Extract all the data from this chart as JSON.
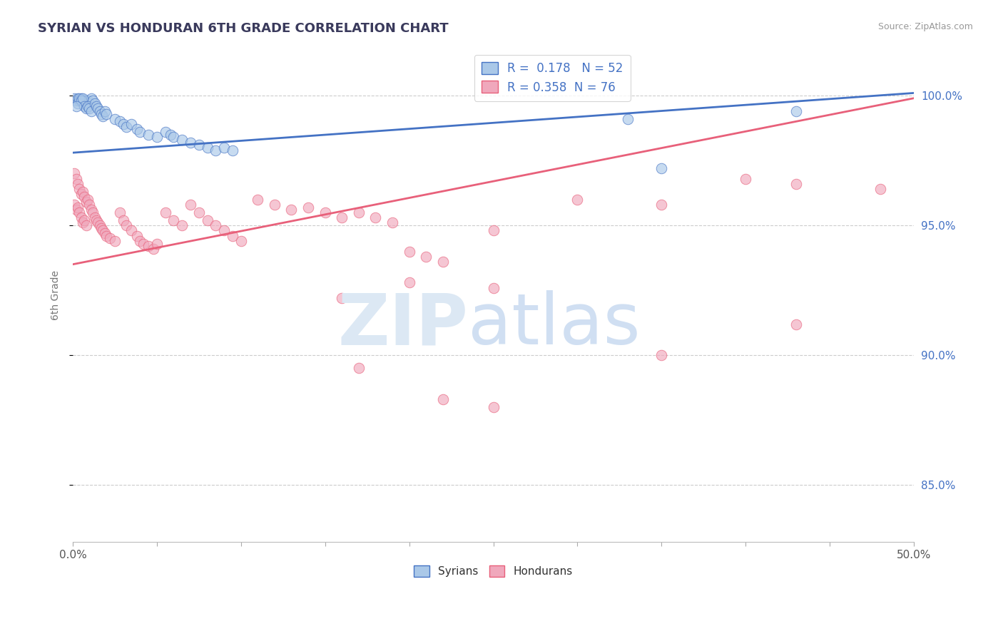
{
  "title": "SYRIAN VS HONDURAN 6TH GRADE CORRELATION CHART",
  "source": "Source: ZipAtlas.com",
  "ylabel": "6th Grade",
  "ytick_labels": [
    "85.0%",
    "90.0%",
    "95.0%",
    "100.0%"
  ],
  "ytick_values": [
    0.85,
    0.9,
    0.95,
    1.0
  ],
  "xmin": 0.0,
  "xmax": 0.5,
  "ymin": 0.828,
  "ymax": 1.018,
  "legend_r_syrian": "R =  0.178",
  "legend_n_syrian": "N = 52",
  "legend_r_honduran": "R = 0.358",
  "legend_n_honduran": "N = 76",
  "syrian_color": "#aac8e8",
  "honduran_color": "#f0a8bc",
  "syrian_line_color": "#4472c4",
  "honduran_line_color": "#e8607a",
  "watermark_color": "#dce8f4",
  "background_color": "#ffffff",
  "syrian_trend_x": [
    0.0,
    0.5
  ],
  "syrian_trend_y": [
    0.978,
    1.001
  ],
  "honduran_trend_x": [
    0.0,
    0.5
  ],
  "honduran_trend_y": [
    0.935,
    0.999
  ],
  "syrian_points": [
    [
      0.001,
      0.999
    ],
    [
      0.002,
      0.998
    ],
    [
      0.003,
      0.999
    ],
    [
      0.004,
      0.998
    ],
    [
      0.005,
      0.999
    ],
    [
      0.006,
      0.997
    ],
    [
      0.007,
      0.998
    ],
    [
      0.008,
      0.997
    ],
    [
      0.009,
      0.998
    ],
    [
      0.01,
      0.997
    ],
    [
      0.011,
      0.999
    ],
    [
      0.012,
      0.998
    ],
    [
      0.003,
      0.997
    ],
    [
      0.004,
      0.999
    ],
    [
      0.005,
      0.998
    ],
    [
      0.006,
      0.999
    ],
    [
      0.007,
      0.996
    ],
    [
      0.008,
      0.995
    ],
    [
      0.009,
      0.996
    ],
    [
      0.002,
      0.996
    ],
    [
      0.01,
      0.995
    ],
    [
      0.011,
      0.994
    ],
    [
      0.013,
      0.997
    ],
    [
      0.014,
      0.996
    ],
    [
      0.015,
      0.995
    ],
    [
      0.016,
      0.994
    ],
    [
      0.017,
      0.993
    ],
    [
      0.018,
      0.992
    ],
    [
      0.019,
      0.994
    ],
    [
      0.02,
      0.993
    ],
    [
      0.025,
      0.991
    ],
    [
      0.028,
      0.99
    ],
    [
      0.03,
      0.989
    ],
    [
      0.032,
      0.988
    ],
    [
      0.035,
      0.989
    ],
    [
      0.038,
      0.987
    ],
    [
      0.04,
      0.986
    ],
    [
      0.045,
      0.985
    ],
    [
      0.05,
      0.984
    ],
    [
      0.055,
      0.986
    ],
    [
      0.058,
      0.985
    ],
    [
      0.06,
      0.984
    ],
    [
      0.065,
      0.983
    ],
    [
      0.07,
      0.982
    ],
    [
      0.075,
      0.981
    ],
    [
      0.08,
      0.98
    ],
    [
      0.085,
      0.979
    ],
    [
      0.09,
      0.98
    ],
    [
      0.095,
      0.979
    ],
    [
      0.33,
      0.991
    ],
    [
      0.43,
      0.994
    ],
    [
      0.35,
      0.972
    ]
  ],
  "honduran_points": [
    [
      0.001,
      0.97
    ],
    [
      0.002,
      0.968
    ],
    [
      0.003,
      0.966
    ],
    [
      0.004,
      0.964
    ],
    [
      0.005,
      0.962
    ],
    [
      0.006,
      0.963
    ],
    [
      0.007,
      0.961
    ],
    [
      0.008,
      0.959
    ],
    [
      0.001,
      0.958
    ],
    [
      0.002,
      0.956
    ],
    [
      0.003,
      0.957
    ],
    [
      0.004,
      0.955
    ],
    [
      0.005,
      0.953
    ],
    [
      0.006,
      0.951
    ],
    [
      0.007,
      0.952
    ],
    [
      0.008,
      0.95
    ],
    [
      0.009,
      0.96
    ],
    [
      0.01,
      0.958
    ],
    [
      0.011,
      0.956
    ],
    [
      0.012,
      0.955
    ],
    [
      0.013,
      0.953
    ],
    [
      0.014,
      0.952
    ],
    [
      0.015,
      0.951
    ],
    [
      0.016,
      0.95
    ],
    [
      0.017,
      0.949
    ],
    [
      0.018,
      0.948
    ],
    [
      0.019,
      0.947
    ],
    [
      0.02,
      0.946
    ],
    [
      0.022,
      0.945
    ],
    [
      0.025,
      0.944
    ],
    [
      0.028,
      0.955
    ],
    [
      0.03,
      0.952
    ],
    [
      0.032,
      0.95
    ],
    [
      0.035,
      0.948
    ],
    [
      0.038,
      0.946
    ],
    [
      0.04,
      0.944
    ],
    [
      0.042,
      0.943
    ],
    [
      0.045,
      0.942
    ],
    [
      0.048,
      0.941
    ],
    [
      0.05,
      0.943
    ],
    [
      0.055,
      0.955
    ],
    [
      0.06,
      0.952
    ],
    [
      0.065,
      0.95
    ],
    [
      0.07,
      0.958
    ],
    [
      0.075,
      0.955
    ],
    [
      0.08,
      0.952
    ],
    [
      0.085,
      0.95
    ],
    [
      0.09,
      0.948
    ],
    [
      0.095,
      0.946
    ],
    [
      0.1,
      0.944
    ],
    [
      0.11,
      0.96
    ],
    [
      0.12,
      0.958
    ],
    [
      0.13,
      0.956
    ],
    [
      0.14,
      0.957
    ],
    [
      0.15,
      0.955
    ],
    [
      0.16,
      0.953
    ],
    [
      0.17,
      0.955
    ],
    [
      0.18,
      0.953
    ],
    [
      0.19,
      0.951
    ],
    [
      0.2,
      0.94
    ],
    [
      0.21,
      0.938
    ],
    [
      0.22,
      0.936
    ],
    [
      0.25,
      0.948
    ],
    [
      0.3,
      0.96
    ],
    [
      0.35,
      0.958
    ],
    [
      0.4,
      0.968
    ],
    [
      0.43,
      0.966
    ],
    [
      0.48,
      0.964
    ],
    [
      0.2,
      0.928
    ],
    [
      0.25,
      0.926
    ],
    [
      0.16,
      0.922
    ],
    [
      0.43,
      0.912
    ],
    [
      0.35,
      0.9
    ],
    [
      0.17,
      0.895
    ],
    [
      0.22,
      0.883
    ],
    [
      0.25,
      0.88
    ]
  ]
}
